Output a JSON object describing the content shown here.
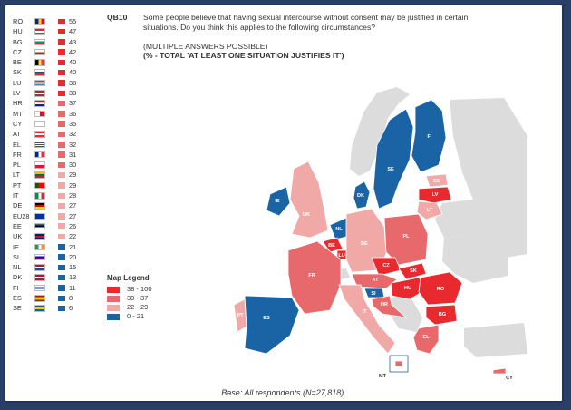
{
  "question": {
    "id": "QB10",
    "text": "Some people believe that having sexual intercourse without consent may be justified in certain situations. Do you think this applies to the following circumstances?",
    "note": "(MULTIPLE ANSWERS POSSIBLE)",
    "subtitle": "(% - TOTAL 'AT LEAST ONE SITUATION JUSTIFIES IT')"
  },
  "colors": {
    "band1": "#e8292e",
    "band2": "#e8696b",
    "band3": "#f0a9a6",
    "band4": "#1a64a5",
    "grey": "#dcdcdc",
    "sea": "#ffffff"
  },
  "countries": [
    {
      "code": "RO",
      "value": "55",
      "band": 1,
      "flag": "ro"
    },
    {
      "code": "HU",
      "value": "47",
      "band": 1,
      "flag": "hu"
    },
    {
      "code": "BG",
      "value": "43",
      "band": 1,
      "flag": "bg"
    },
    {
      "code": "CZ",
      "value": "42",
      "band": 1,
      "flag": "cz"
    },
    {
      "code": "BE",
      "value": "40",
      "band": 1,
      "flag": "be"
    },
    {
      "code": "SK",
      "value": "40",
      "band": 1,
      "flag": "sk"
    },
    {
      "code": "LU",
      "value": "38",
      "band": 1,
      "flag": "lu"
    },
    {
      "code": "LV",
      "value": "38",
      "band": 1,
      "flag": "lv"
    },
    {
      "code": "HR",
      "value": "37",
      "band": 2,
      "flag": "hr"
    },
    {
      "code": "MT",
      "value": "36",
      "band": 2,
      "flag": "mt"
    },
    {
      "code": "CY",
      "value": "35",
      "band": 2,
      "flag": "cy"
    },
    {
      "code": "AT",
      "value": "32",
      "band": 2,
      "flag": "at"
    },
    {
      "code": "EL",
      "value": "32",
      "band": 2,
      "flag": "el"
    },
    {
      "code": "FR",
      "value": "31",
      "band": 2,
      "flag": "fr"
    },
    {
      "code": "PL",
      "value": "30",
      "band": 2,
      "flag": "pl"
    },
    {
      "code": "LT",
      "value": "29",
      "band": 3,
      "flag": "lt"
    },
    {
      "code": "PT",
      "value": "29",
      "band": 3,
      "flag": "pt"
    },
    {
      "code": "IT",
      "value": "28",
      "band": 3,
      "flag": "it"
    },
    {
      "code": "DE",
      "value": "27",
      "band": 3,
      "flag": "de"
    },
    {
      "code": "EU28",
      "value": "27",
      "band": 3,
      "flag": "eu"
    },
    {
      "code": "EE",
      "value": "26",
      "band": 3,
      "flag": "ee"
    },
    {
      "code": "UK",
      "value": "22",
      "band": 3,
      "flag": "uk"
    },
    {
      "code": "IE",
      "value": "21",
      "band": 4,
      "flag": "ie"
    },
    {
      "code": "SI",
      "value": "20",
      "band": 4,
      "flag": "si"
    },
    {
      "code": "NL",
      "value": "15",
      "band": 4,
      "flag": "nl"
    },
    {
      "code": "DK",
      "value": "13",
      "band": 4,
      "flag": "dk"
    },
    {
      "code": "FI",
      "value": "11",
      "band": 4,
      "flag": "fi"
    },
    {
      "code": "ES",
      "value": "8",
      "band": 4,
      "flag": "es"
    },
    {
      "code": "SE",
      "value": "6",
      "band": 4,
      "flag": "se"
    }
  ],
  "legend": {
    "title": "Map Legend",
    "items": [
      {
        "label": "38 - 100",
        "band": 1
      },
      {
        "label": "30 - 37",
        "band": 2
      },
      {
        "label": "22 - 29",
        "band": 3
      },
      {
        "label": "0 - 21",
        "band": 4
      }
    ]
  },
  "map_labels": {
    "FI": "FI",
    "SE": "SE",
    "EE": "EE",
    "LV": "LV",
    "LT": "LT",
    "DK": "DK",
    "IE": "IE",
    "UK": "UK",
    "NL": "NL",
    "BE": "BE",
    "LU": "LU",
    "DE": "DE",
    "PL": "PL",
    "CZ": "CZ",
    "SK": "SK",
    "AT": "AT",
    "HU": "HU",
    "SI": "SI",
    "HR": "HR",
    "RO": "RO",
    "BG": "BG",
    "FR": "FR",
    "PT": "PT",
    "ES": "ES",
    "IT": "IT",
    "EL": "EL",
    "MT": "MT",
    "CY": "CY"
  },
  "base_note": "Base: All respondents (N=27,818)."
}
